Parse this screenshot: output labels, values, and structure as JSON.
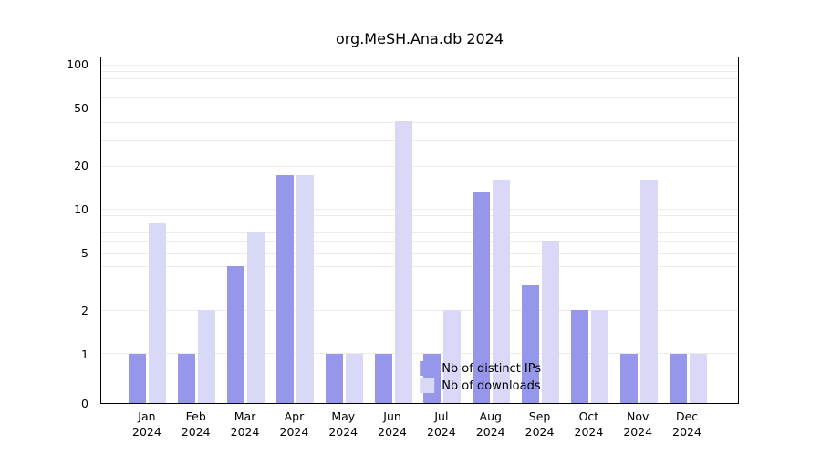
{
  "title": "org.MeSH.Ana.db 2024",
  "chart_data": {
    "type": "bar",
    "scale": "log-with-zero",
    "categories": [
      "Jan",
      "Feb",
      "Mar",
      "Apr",
      "May",
      "Jun",
      "Jul",
      "Aug",
      "Sep",
      "Oct",
      "Nov",
      "Dec"
    ],
    "year": "2024",
    "series": [
      {
        "name": "Nb of distinct IPs",
        "color": "#9696ea",
        "values": [
          1,
          1,
          4,
          17,
          1,
          1,
          1,
          13,
          3,
          2,
          1,
          1
        ]
      },
      {
        "name": "Nb of downloads",
        "color": "#d9d9f7",
        "values": [
          8,
          2,
          7,
          17,
          1,
          40,
          2,
          16,
          6,
          2,
          16,
          1
        ]
      }
    ],
    "yticks": [
      0,
      1,
      2,
      5,
      10,
      20,
      50,
      100
    ],
    "ymax": 100,
    "grid": "horizontal-minor-log",
    "legend_position": "inside-bottom-center"
  }
}
